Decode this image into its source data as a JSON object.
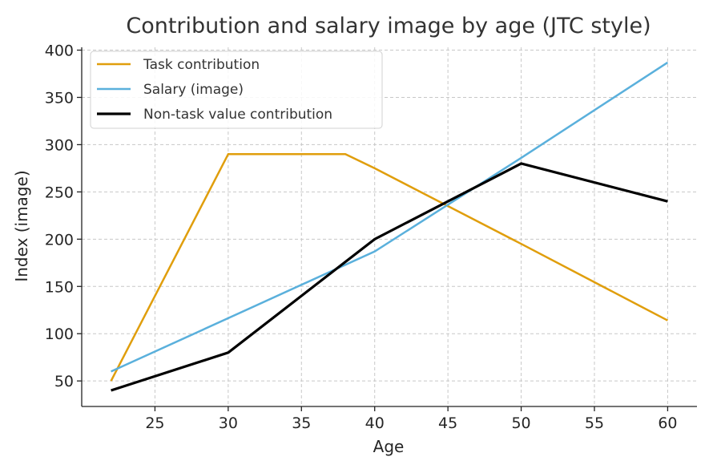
{
  "chart_data": {
    "type": "line",
    "title": "Contribution and salary image by age (JTC style)",
    "xlabel": "Age",
    "ylabel": "Index (image)",
    "xlim": [
      20,
      62
    ],
    "ylim": [
      23,
      403
    ],
    "xticks": [
      25,
      30,
      35,
      40,
      45,
      50,
      55,
      60
    ],
    "yticks": [
      50,
      100,
      150,
      200,
      250,
      300,
      350,
      400
    ],
    "grid": true,
    "legend_position": "top-left",
    "series": [
      {
        "name": "Task contribution",
        "color": "#e09e0c",
        "x": [
          22,
          30,
          38,
          40,
          50,
          60
        ],
        "y": [
          50,
          290,
          290,
          275,
          195,
          114
        ]
      },
      {
        "name": "Salary (image)",
        "color": "#5ab0dc",
        "x": [
          22,
          40,
          50,
          60
        ],
        "y": [
          60,
          187,
          286,
          387
        ]
      },
      {
        "name": "Non-task value contribution",
        "color": "#000000",
        "x": [
          22,
          30,
          40,
          50,
          60
        ],
        "y": [
          40,
          80,
          200,
          280,
          240
        ]
      }
    ]
  }
}
